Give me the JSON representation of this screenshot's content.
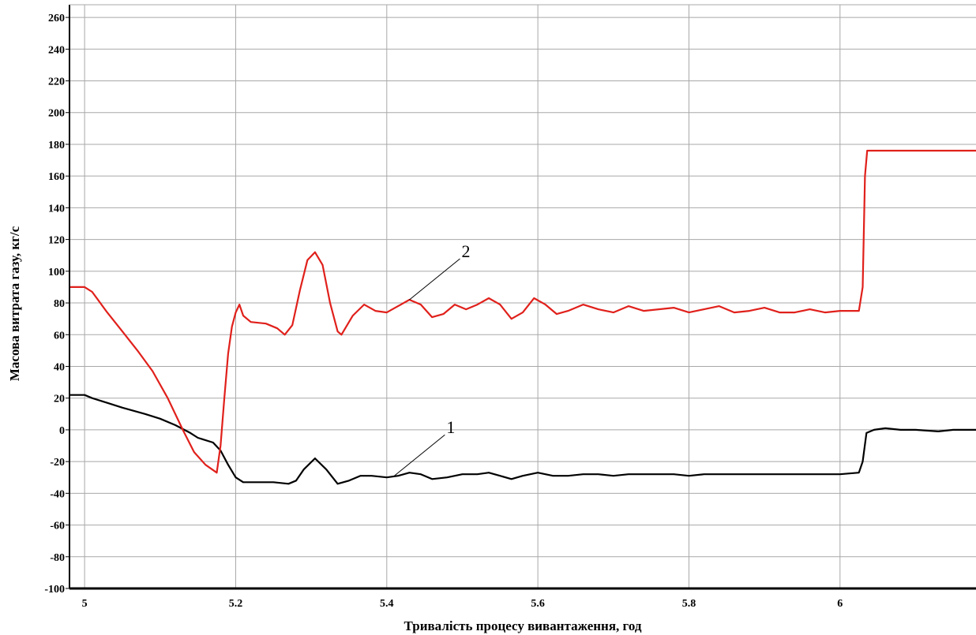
{
  "chart_data": {
    "type": "line",
    "title": "",
    "xlabel": "Тривалість процесу вивантаження, год",
    "ylabel": "Масова витрата газу, кг/с",
    "xlim": [
      4.98,
      6.18
    ],
    "ylim": [
      -100,
      268
    ],
    "grid": true,
    "x_ticks": [
      "5",
      "5.2",
      "5.4",
      "5.6",
      "5.8",
      "6"
    ],
    "y_ticks": [
      "260",
      "240",
      "220",
      "200",
      "180",
      "160",
      "140",
      "120",
      "100",
      "80",
      "60",
      "40",
      "20",
      "0",
      "-20",
      "-40",
      "-60",
      "-80",
      "-100"
    ],
    "colors": {
      "series_1": "#000000",
      "series_2": "#e0201b",
      "grid": "#a8a8a8",
      "axis": "#000000"
    },
    "annotations": [
      {
        "text": "1",
        "series": "1",
        "x": 5.41,
        "y": -29
      },
      {
        "text": "2",
        "series": "2",
        "x": 5.43,
        "y": 82
      }
    ],
    "series": [
      {
        "id": "1",
        "points": [
          [
            4.98,
            22
          ],
          [
            5.0,
            22
          ],
          [
            5.01,
            20
          ],
          [
            5.03,
            17
          ],
          [
            5.05,
            14
          ],
          [
            5.08,
            10
          ],
          [
            5.1,
            7
          ],
          [
            5.12,
            3
          ],
          [
            5.14,
            -2
          ],
          [
            5.15,
            -5
          ],
          [
            5.17,
            -8
          ],
          [
            5.18,
            -13
          ],
          [
            5.19,
            -22
          ],
          [
            5.2,
            -30
          ],
          [
            5.21,
            -33
          ],
          [
            5.23,
            -33
          ],
          [
            5.25,
            -33
          ],
          [
            5.27,
            -34
          ],
          [
            5.28,
            -32
          ],
          [
            5.29,
            -25
          ],
          [
            5.305,
            -18
          ],
          [
            5.32,
            -25
          ],
          [
            5.335,
            -34
          ],
          [
            5.35,
            -32
          ],
          [
            5.365,
            -29
          ],
          [
            5.38,
            -29
          ],
          [
            5.4,
            -30
          ],
          [
            5.415,
            -29
          ],
          [
            5.43,
            -27
          ],
          [
            5.445,
            -28
          ],
          [
            5.46,
            -31
          ],
          [
            5.48,
            -30
          ],
          [
            5.5,
            -28
          ],
          [
            5.52,
            -28
          ],
          [
            5.535,
            -27
          ],
          [
            5.55,
            -29
          ],
          [
            5.565,
            -31
          ],
          [
            5.58,
            -29
          ],
          [
            5.6,
            -27
          ],
          [
            5.62,
            -29
          ],
          [
            5.64,
            -29
          ],
          [
            5.66,
            -28
          ],
          [
            5.68,
            -28
          ],
          [
            5.7,
            -29
          ],
          [
            5.72,
            -28
          ],
          [
            5.74,
            -28
          ],
          [
            5.76,
            -28
          ],
          [
            5.78,
            -28
          ],
          [
            5.8,
            -29
          ],
          [
            5.82,
            -28
          ],
          [
            5.85,
            -28
          ],
          [
            5.88,
            -28
          ],
          [
            5.9,
            -28
          ],
          [
            5.93,
            -28
          ],
          [
            5.96,
            -28
          ],
          [
            6.0,
            -28
          ],
          [
            6.025,
            -27
          ],
          [
            6.03,
            -20
          ],
          [
            6.035,
            -2
          ],
          [
            6.045,
            0
          ],
          [
            6.06,
            1
          ],
          [
            6.08,
            0
          ],
          [
            6.1,
            0
          ],
          [
            6.13,
            -1
          ],
          [
            6.15,
            0
          ],
          [
            6.18,
            0
          ]
        ]
      },
      {
        "id": "2",
        "points": [
          [
            4.98,
            90
          ],
          [
            5.0,
            90
          ],
          [
            5.01,
            87
          ],
          [
            5.03,
            74
          ],
          [
            5.05,
            62
          ],
          [
            5.07,
            50
          ],
          [
            5.09,
            37
          ],
          [
            5.11,
            20
          ],
          [
            5.13,
            0
          ],
          [
            5.145,
            -14
          ],
          [
            5.16,
            -22
          ],
          [
            5.175,
            -27
          ],
          [
            5.18,
            -10
          ],
          [
            5.185,
            20
          ],
          [
            5.19,
            48
          ],
          [
            5.195,
            65
          ],
          [
            5.2,
            74
          ],
          [
            5.205,
            79
          ],
          [
            5.21,
            72
          ],
          [
            5.22,
            68
          ],
          [
            5.24,
            67
          ],
          [
            5.255,
            64
          ],
          [
            5.265,
            60
          ],
          [
            5.275,
            66
          ],
          [
            5.285,
            88
          ],
          [
            5.295,
            107
          ],
          [
            5.305,
            112
          ],
          [
            5.315,
            104
          ],
          [
            5.325,
            80
          ],
          [
            5.335,
            62
          ],
          [
            5.34,
            60
          ],
          [
            5.355,
            72
          ],
          [
            5.37,
            79
          ],
          [
            5.385,
            75
          ],
          [
            5.4,
            74
          ],
          [
            5.415,
            78
          ],
          [
            5.43,
            82
          ],
          [
            5.445,
            79
          ],
          [
            5.46,
            71
          ],
          [
            5.475,
            73
          ],
          [
            5.49,
            79
          ],
          [
            5.505,
            76
          ],
          [
            5.52,
            79
          ],
          [
            5.535,
            83
          ],
          [
            5.55,
            79
          ],
          [
            5.565,
            70
          ],
          [
            5.58,
            74
          ],
          [
            5.595,
            83
          ],
          [
            5.61,
            79
          ],
          [
            5.625,
            73
          ],
          [
            5.64,
            75
          ],
          [
            5.66,
            79
          ],
          [
            5.68,
            76
          ],
          [
            5.7,
            74
          ],
          [
            5.72,
            78
          ],
          [
            5.74,
            75
          ],
          [
            5.76,
            76
          ],
          [
            5.78,
            77
          ],
          [
            5.8,
            74
          ],
          [
            5.82,
            76
          ],
          [
            5.84,
            78
          ],
          [
            5.86,
            74
          ],
          [
            5.88,
            75
          ],
          [
            5.9,
            77
          ],
          [
            5.92,
            74
          ],
          [
            5.94,
            74
          ],
          [
            5.96,
            76
          ],
          [
            5.98,
            74
          ],
          [
            6.0,
            75
          ],
          [
            6.025,
            75
          ],
          [
            6.03,
            90
          ],
          [
            6.033,
            160
          ],
          [
            6.036,
            176
          ],
          [
            6.06,
            176
          ],
          [
            6.1,
            176
          ],
          [
            6.14,
            176
          ],
          [
            6.18,
            176
          ]
        ]
      }
    ]
  }
}
